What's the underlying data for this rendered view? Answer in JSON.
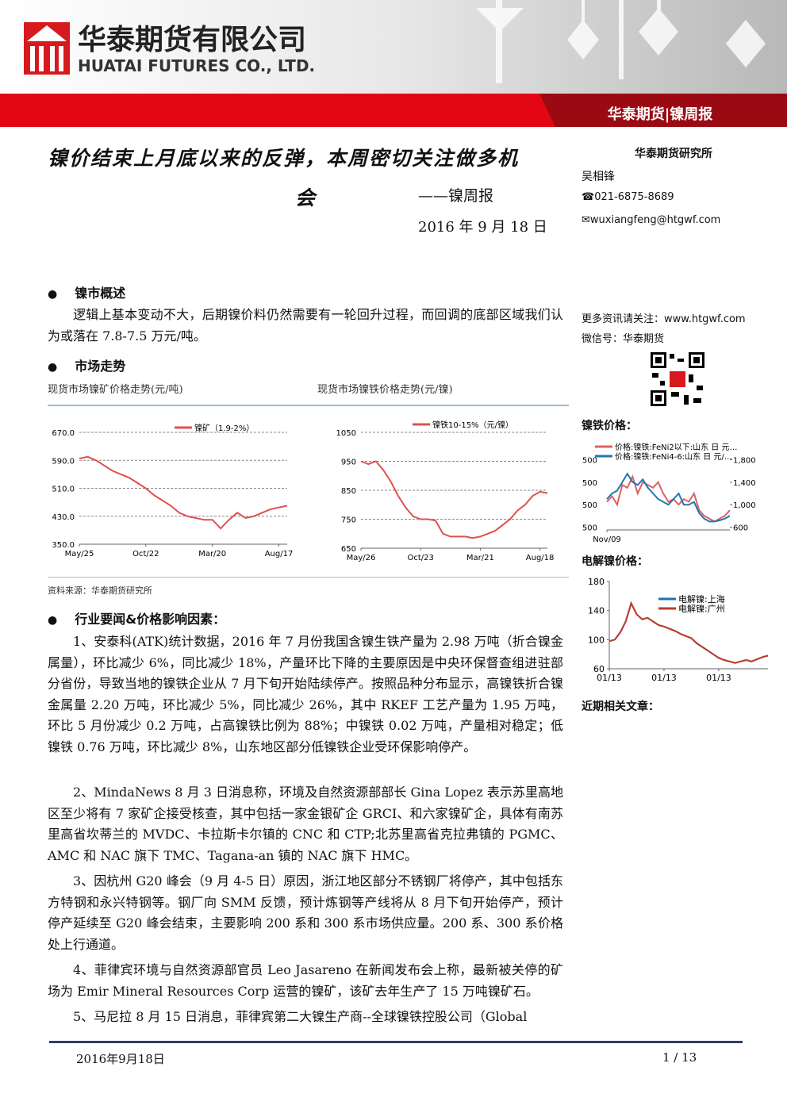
{
  "header": {
    "company_cn": "华泰期货有限公司",
    "company_en": "HUATAI FUTURES CO., LTD.",
    "banner": "华泰期货|镍周报"
  },
  "title": {
    "line1": "镍价结束上月底以来的反弹，本周密切关注做多机",
    "line2": "会",
    "subtitle": "——镍周报",
    "date": "2016 年 9 月 18 日"
  },
  "sidebar": {
    "institute": "华泰期货研究所",
    "author": "吴相锋",
    "phone": "☎021-6875-8689",
    "email": "✉wuxiangfeng@htgwf.com",
    "more": "更多资讯请关注：www.htgwf.com",
    "wechat": "微信号：华泰期货",
    "nife_heading": "镍铁价格：",
    "elec_heading": "电解镍价格：",
    "related": "近期相关文章："
  },
  "sections": [
    {
      "heading": "镍市概述",
      "paragraphs": [
        "逻辑上基本变动不大，后期镍价料仍然需要有一轮回升过程，而回调的底部区域我们认为或落在 7.8-7.5 万元/吨。"
      ]
    },
    {
      "heading": "市场走势",
      "captions": [
        "现货市场镍矿价格走势(元/吨)",
        "现货市场镍铁价格走势(元/镍)"
      ],
      "source": "资料来源：华泰期货研究所"
    },
    {
      "heading": "行业要闻&价格影响因素：",
      "paragraphs": [
        "1、安泰科(ATK)统计数据，2016 年 7 月份我国含镍生铁产量为 2.98 万吨（折合镍金属量），环比减少 6%，同比减少 18%，产量环比下降的主要原因是中央环保督查组进驻部分省份，导致当地的镍铁企业从 7 月下旬开始陆续停产。按照品种分布显示，高镍铁折合镍金属量 2.20 万吨，环比减少 5%，同比减少 26%，其中 RKEF 工艺产量为 1.95 万吨，环比 5 月份减少 0.2 万吨，占高镍铁比例为 88%；中镍铁 0.02 万吨，产量相对稳定；低镍铁 0.76 万吨，环比减少 8%，山东地区部分低镍铁企业受环保影响停产。",
        "2、MindaNews 8 月 3 日消息称，环境及自然资源部部长 Gina Lopez 表示苏里高地区至少将有 7 家矿企接受核查，其中包括一家金银矿企 GRCI、和六家镍矿企，具体有南苏里高省坎蒂兰的 MVDC、卡拉斯卡尔镇的 CNC 和 CTP;北苏里高省克拉弗镇的 PGMC、AMC 和 NAC 旗下 TMC、Tagana-an 镇的 NAC 旗下 HMC。",
        "3、因杭州 G20 峰会（9 月 4-5 日）原因，浙江地区部分不锈钢厂将停产，其中包括东方特钢和永兴特钢等。钢厂向 SMM 反馈，预计炼钢等产线将从 8 月下旬开始停产，预计停产延续至 G20 峰会结束，主要影响 200 系和 300 系市场供应量。200 系、300 系价格处上行通道。",
        "4、菲律宾环境与自然资源部官员 Leo Jasareno 在新闻发布会上称，最新被关停的矿场为 Emir Mineral Resources Corp 运营的镍矿，该矿去年生产了 15 万吨镍矿石。",
        "5、马尼拉 8 月 15 日消息，菲律宾第二大镍生产商--全球镍铁控股公司（Global"
      ]
    }
  ],
  "charts": [
    {
      "type": "line",
      "categories": [
        "May/25",
        null,
        null,
        null,
        null,
        null,
        null,
        null,
        "Oct/22",
        null,
        null,
        null,
        null,
        null,
        null,
        null,
        "Mar/20",
        null,
        null,
        null,
        null,
        null,
        null,
        null,
        "Aug/17",
        null
      ],
      "series": [
        {
          "name": "镍矿（1.9-2%）",
          "color": "#e05050",
          "values": [
            595,
            600,
            590,
            575,
            560,
            550,
            540,
            525,
            510,
            490,
            475,
            460,
            440,
            430,
            425,
            420,
            420,
            395,
            420,
            440,
            425,
            430,
            440,
            450,
            455,
            460
          ]
        }
      ],
      "ylim": [
        350,
        670
      ],
      "yticks": [
        {
          "value": 350,
          "label": "350.0"
        },
        {
          "value": 430,
          "label": "430.0"
        },
        {
          "value": 510,
          "label": "510.0"
        },
        {
          "value": 590,
          "label": "590.0"
        },
        {
          "value": 670,
          "label": "670.0"
        }
      ],
      "grid": true
    },
    {
      "type": "line",
      "categories": [
        "May/26",
        null,
        null,
        null,
        null,
        null,
        null,
        null,
        "Oct/23",
        null,
        null,
        null,
        null,
        null,
        null,
        null,
        "Mar/21",
        null,
        null,
        null,
        null,
        null,
        null,
        null,
        "Aug/18",
        null
      ],
      "series": [
        {
          "name": "镍铁10-15%（元/镍）",
          "color": "#e05050",
          "values": [
            950,
            940,
            950,
            920,
            880,
            830,
            790,
            760,
            750,
            750,
            745,
            700,
            690,
            690,
            690,
            685,
            690,
            700,
            710,
            730,
            750,
            780,
            800,
            830,
            845,
            840
          ]
        }
      ],
      "ylim": [
        650,
        1050
      ],
      "yticks": [
        650,
        750,
        850,
        950,
        1050
      ],
      "grid": true
    },
    {
      "type": "line",
      "categories": [
        "Nov/09",
        null,
        null,
        null,
        null,
        null,
        null,
        null,
        null,
        null,
        null,
        null,
        null,
        null,
        null,
        null,
        null,
        null,
        null,
        null,
        null,
        null,
        null,
        null,
        null
      ],
      "series": [
        {
          "name": "价格:镍铁:FeNi2以下:山东 日 元…",
          "color": "#e06060",
          "axis": "y2",
          "values": [
            1050,
            1150,
            1000,
            1350,
            1300,
            1500,
            1200,
            1400,
            1350,
            1300,
            1400,
            1200,
            1050,
            1100,
            1000,
            1100,
            1050,
            1200,
            900,
            800,
            750,
            700,
            750,
            800,
            900
          ]
        },
        {
          "name": "价格:镍铁:FeNi4-6:山东 日 元/…",
          "color": "#1f78b4",
          "axis": "y2",
          "values": [
            1100,
            1200,
            1250,
            1400,
            1550,
            1400,
            1350,
            1450,
            1300,
            1200,
            1100,
            1050,
            1000,
            1100,
            1200,
            1000,
            1000,
            1050,
            850,
            750,
            700,
            700,
            720,
            750,
            800
          ]
        }
      ],
      "left_axis_labels": [
        "500",
        "500",
        "500",
        "500"
      ],
      "y2lim": [
        550,
        1850
      ],
      "y2ticks": [
        600,
        {
          "value": 1000,
          "label": "1,000"
        },
        {
          "value": 1400,
          "label": "1,400"
        },
        {
          "value": 1800,
          "label": "1,800"
        }
      ]
    },
    {
      "type": "line",
      "categories": [
        "01/13",
        null,
        null,
        null,
        null,
        null,
        null,
        null,
        null,
        null,
        "01/13",
        null,
        null,
        null,
        null,
        null,
        null,
        null,
        null,
        null,
        "01/13",
        null,
        null,
        null,
        null,
        null,
        null,
        null,
        null,
        null
      ],
      "series": [
        {
          "name": "电解镍:上海",
          "color": "#1f6fb5",
          "values": [
            98,
            100,
            110,
            125,
            150,
            135,
            128,
            130,
            125,
            120,
            118,
            115,
            112,
            108,
            105,
            102,
            95,
            90,
            85,
            80,
            75,
            72,
            70,
            68,
            70,
            72,
            70,
            73,
            76,
            78
          ]
        },
        {
          "name": "电解镍:广州",
          "color": "#c0392b",
          "values": [
            98,
            100,
            110,
            125,
            150,
            135,
            128,
            130,
            125,
            120,
            118,
            115,
            112,
            108,
            105,
            102,
            95,
            90,
            85,
            80,
            75,
            72,
            70,
            68,
            70,
            72,
            70,
            73,
            76,
            78
          ]
        }
      ],
      "ylim": [
        60,
        180
      ],
      "yticks": [
        60,
        100,
        140,
        180
      ]
    }
  ],
  "footer": {
    "date": "2016年9月18日",
    "page": "1 / 13"
  }
}
